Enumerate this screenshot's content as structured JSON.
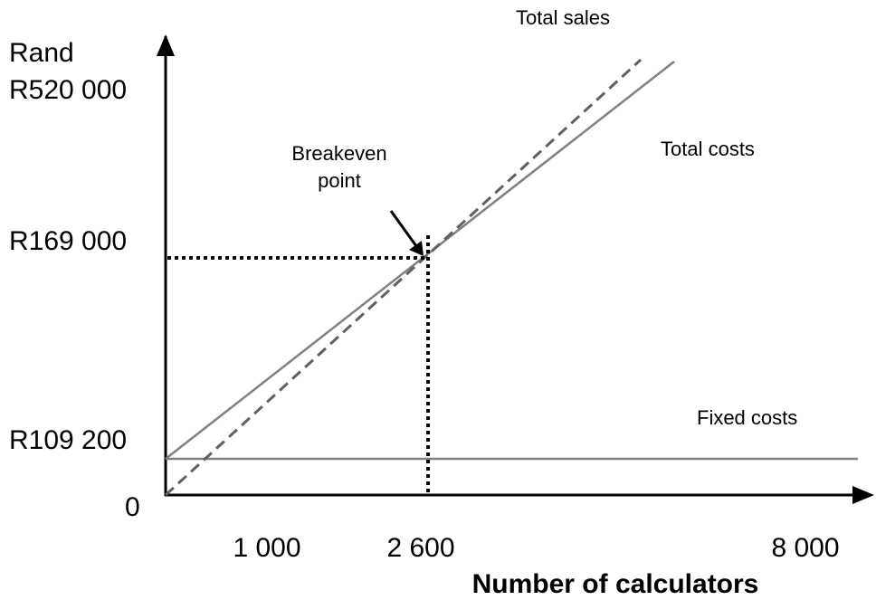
{
  "y_axis": {
    "title": "Rand",
    "labels": [
      "R520 000",
      "R169 000",
      "R109 200",
      "0"
    ]
  },
  "x_axis": {
    "title": "Number of calculators",
    "labels": [
      "1 000",
      "2 600",
      "8 000"
    ]
  },
  "lines": {
    "total_sales": "Total sales",
    "total_costs": "Total costs",
    "fixed_costs": "Fixed costs"
  },
  "annotation": {
    "lines": [
      "Breakeven",
      "point"
    ]
  }
}
